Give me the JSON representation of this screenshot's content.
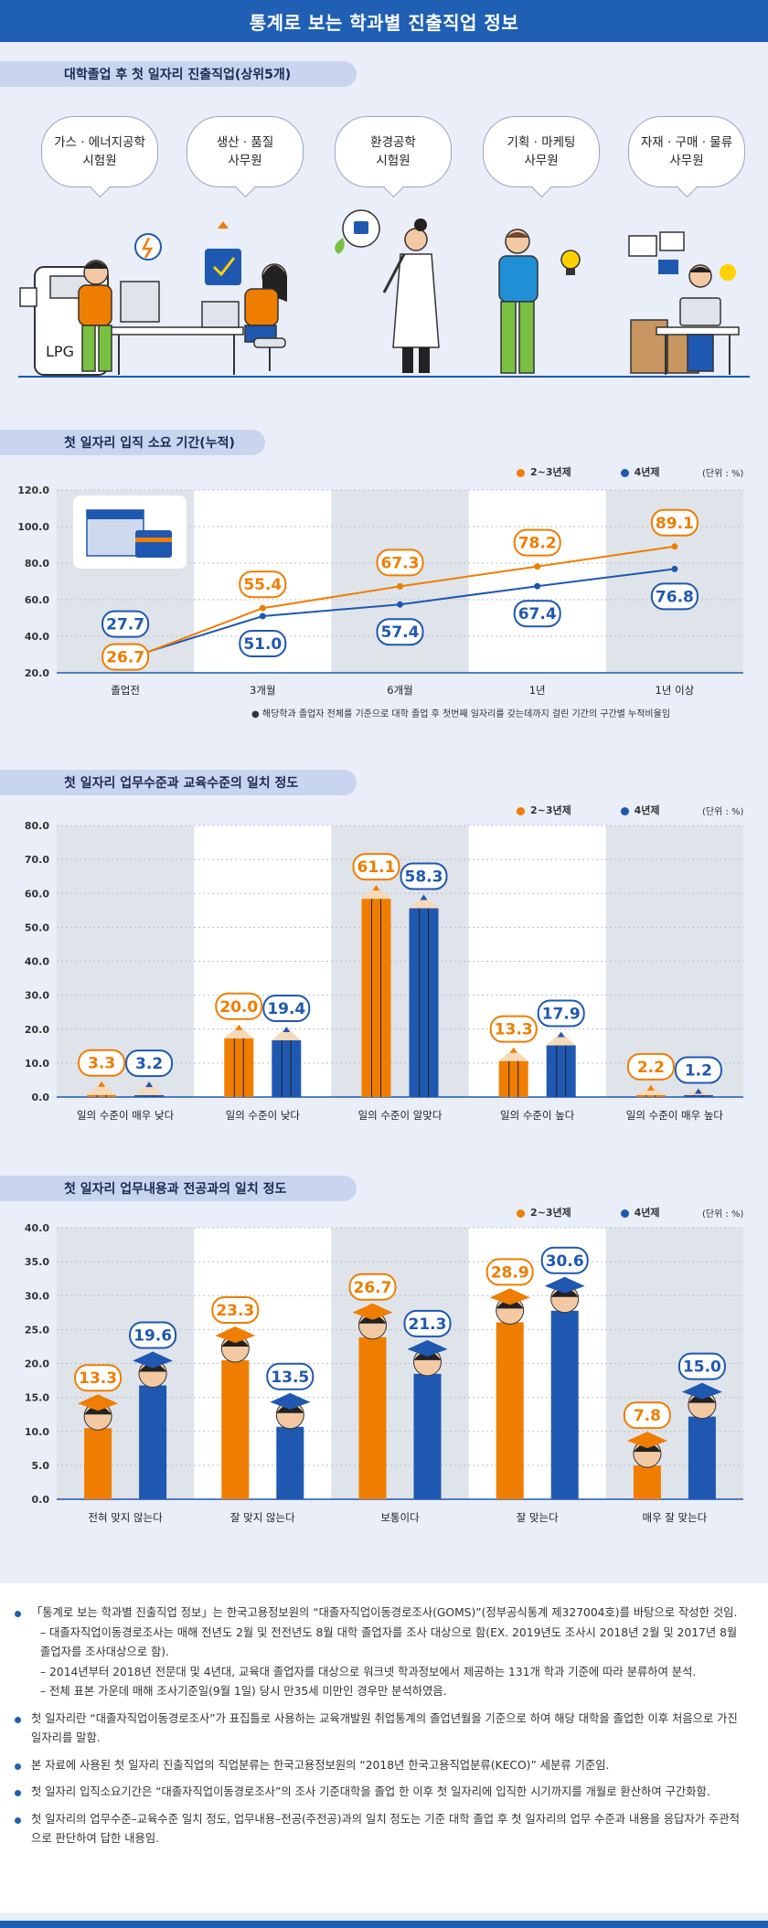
{
  "header": {
    "title": "통계로 보는 학과별 진출직업 정보"
  },
  "section1": {
    "title": "대학졸업 후 첫 일자리 진출직업(상위5개)",
    "jobs": [
      "가스 · 에너지공학\n시험원",
      "생산 · 품질\n사무원",
      "환경공학\n시험원",
      "기획 · 마케팅\n사무원",
      "자재 · 구매 · 물류\n사무원"
    ],
    "lpg_label": "LPG"
  },
  "legend": {
    "s1": "2~3년제",
    "s2": "4년제",
    "unit": "(단위 : %)"
  },
  "colors": {
    "orange": "#ef7d00",
    "blue": "#1f58b0",
    "band": "#dfe3ea"
  },
  "chart_data": [
    {
      "type": "line",
      "title": "첫 일자리 입직 소요 기간(누적)",
      "categories": [
        "졸업전",
        "3개월",
        "6개월",
        "1년",
        "1년 이상"
      ],
      "series": [
        {
          "name": "2~3년제",
          "values": [
            26.7,
            55.4,
            67.3,
            78.2,
            89.1
          ]
        },
        {
          "name": "4년제",
          "values": [
            27.7,
            51.0,
            57.4,
            67.4,
            76.8
          ]
        }
      ],
      "ylim": [
        20,
        120
      ],
      "yticks": [
        "20.0",
        "40.0",
        "60.0",
        "80.0",
        "100.0",
        "120.0"
      ],
      "labels": {
        "s1": [
          "26.7",
          "55.4",
          "67.3",
          "78.2",
          "89.1"
        ],
        "s2": [
          "27.7",
          "51.0",
          "57.4",
          "67.4",
          "76.8"
        ]
      },
      "footnote": "해당학과 졸업자 전체를 기준으로 대학 졸업 후 첫번째 일자리를 갖는데까지 걸린 기간의 구간별 누적비율임"
    },
    {
      "type": "bar",
      "title": "첫 일자리 업무수준과 교육수준의 일치 정도",
      "categories": [
        "일의 수준이 매우 낮다",
        "일의 수준이 낮다",
        "일의 수준이 알맞다",
        "일의 수준이 높다",
        "일의 수준이 매우 높다"
      ],
      "series": [
        {
          "name": "2~3년제",
          "values": [
            3.3,
            20.0,
            61.1,
            13.3,
            2.2
          ]
        },
        {
          "name": "4년제",
          "values": [
            3.2,
            19.4,
            58.3,
            17.9,
            1.2
          ]
        }
      ],
      "ylim": [
        0,
        80
      ],
      "yticks": [
        "0.0",
        "10.0",
        "20.0",
        "30.0",
        "40.0",
        "50.0",
        "60.0",
        "70.0",
        "80.0"
      ],
      "labels": {
        "s1": [
          "3.3",
          "20.0",
          "61.1",
          "13.3",
          "2.2"
        ],
        "s2": [
          "3.2",
          "19.4",
          "58.3",
          "17.9",
          "1.2"
        ]
      }
    },
    {
      "type": "bar",
      "title": "첫 일자리 업무내용과 전공과의 일치 정도",
      "categories": [
        "전혀 맞지 않는다",
        "잘 맞지 않는다",
        "보통이다",
        "잘 맞는다",
        "매우 잘 맞는다"
      ],
      "series": [
        {
          "name": "2~3년제",
          "values": [
            13.3,
            23.3,
            26.7,
            28.9,
            7.8
          ]
        },
        {
          "name": "4년제",
          "values": [
            19.6,
            13.5,
            21.3,
            30.6,
            15.0
          ]
        }
      ],
      "ylim": [
        0,
        40
      ],
      "yticks": [
        "0.0",
        "5.0",
        "10.0",
        "15.0",
        "20.0",
        "25.0",
        "30.0",
        "35.0",
        "40.0"
      ],
      "labels": {
        "s1": [
          "13.3",
          "23.3",
          "26.7",
          "28.9",
          "7.8"
        ],
        "s2": [
          "19.6",
          "13.5",
          "21.3",
          "30.6",
          "15.0"
        ]
      }
    }
  ],
  "notes": {
    "n1": "「통계로 보는 학과별 진출직업 정보」는 한국고용정보원의 “대졸자직업이동경로조사(GOMS)”(정부공식통계 제327004호)를 바탕으로 작성한 것임.",
    "n1a": "– 대졸자직업이동경로조사는 매해 전년도 2월 및 전전년도 8월 대학 졸업자를 조사 대상으로 함(EX. 2019년도 조사시 2018년 2월 및 2017년 8월 졸업자를 조사대상으로 함).",
    "n1b": "– 2014년부터 2018년 전문대 및 4년대, 교육대 졸업자를 대상으로 워크넷 학과정보에서 제공하는 131개 학과 기준에 따라 분류하여 분석.",
    "n1c": "– 전체 표본 가운데 매해 조사기준일(9월 1일) 당시 만35세 미만인 경우만 분석하였음.",
    "n2": "첫 일자리란 “대졸자직업이동경로조사”가 표집틀로 사용하는 교육개발원 취업통계의 졸업년월을 기준으로 하여 해당 대학을 졸업한 이후 처음으로 가진 일자리를 말함.",
    "n3": "본 자료에 사용된 첫 일자리 진출직업의 직업분류는 한국고용정보원의 “2018년 한국고용직업분류(KECO)” 세분류 기준임.",
    "n4": "첫 일자리 입직소요기간은 “대졸자직업이동경로조사”의 조사 기준대학을 졸업 한 이후 첫 일자리에 입직한 시기까지를 개월로 환산하여 구간화함.",
    "n5": "첫 일자리의 업무수준–교육수준 일치 정도, 업무내용–전공(주전공)과의 일치 정도는 기준 대학 졸업 후 첫 일자리의 업무 수준과 내용을 응답자가 주관적으로 판단하여 답한 내용임."
  }
}
